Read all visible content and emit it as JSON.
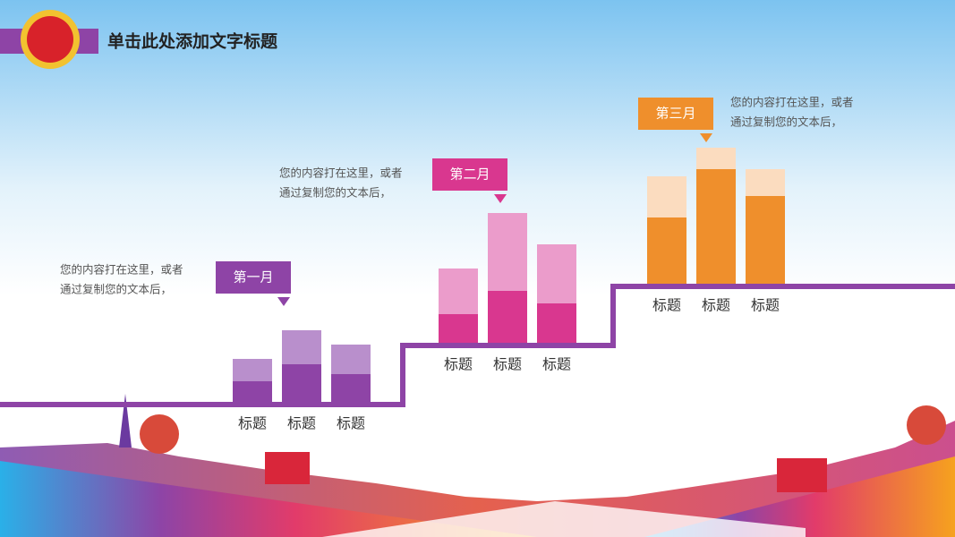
{
  "header": {
    "title": "单击此处添加文字标题"
  },
  "groups": [
    {
      "label": "第一月",
      "text": [
        "您的内容打在这里，或者",
        "通过复制您的文本后，"
      ],
      "color_dark": "#8e44a6",
      "color_light": "#b98fcc",
      "bars": [
        {
          "name": "标题",
          "dark": 23,
          "light": 25
        },
        {
          "name": "标题",
          "dark": 42,
          "light": 38
        },
        {
          "name": "标题",
          "dark": 31,
          "light": 33
        }
      ]
    },
    {
      "label": "第二月",
      "text": [
        "您的内容打在这里，或者",
        "通过复制您的文本后，"
      ],
      "color_dark": "#d9378f",
      "color_light": "#eb9ccb",
      "bars": [
        {
          "name": "标题",
          "dark": 32,
          "light": 51
        },
        {
          "name": "标题",
          "dark": 58,
          "light": 87
        },
        {
          "name": "标题",
          "dark": 44,
          "light": 66
        }
      ]
    },
    {
      "label": "第三月",
      "text": [
        "您的内容打在这里，或者",
        "通过复制您的文本后，"
      ],
      "color_dark": "#ef8f2c",
      "color_light": "#fbdcbf",
      "bars": [
        {
          "name": "标题",
          "dark": 74,
          "light": 46
        },
        {
          "name": "标题",
          "dark": 128,
          "light": 24
        },
        {
          "name": "标题",
          "dark": 98,
          "light": 30
        }
      ]
    }
  ]
}
